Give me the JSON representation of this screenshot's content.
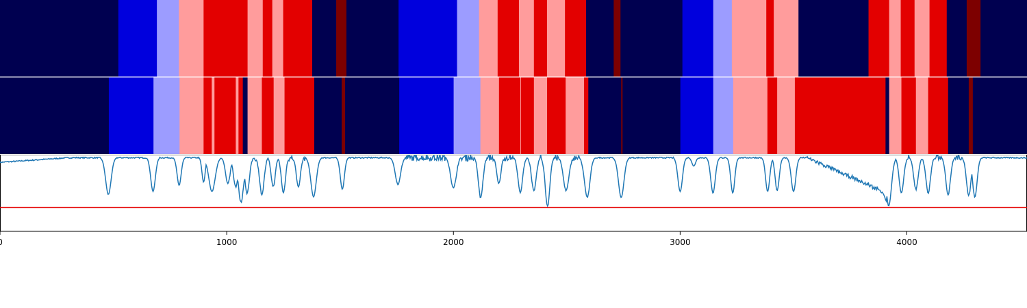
{
  "chart_data": [
    {
      "type": "heatmap",
      "panel": "segment-track-1",
      "x_range": [
        0,
        4530
      ],
      "colors": {
        "navy": "#000050",
        "blue": "#0000dd",
        "lightblue": "#9c9cff",
        "pink": "#ff9c9c",
        "red": "#e30000",
        "darkred": "#7d0000"
      },
      "segments": [
        {
          "start": 0,
          "end": 522,
          "cls": "navy"
        },
        {
          "start": 522,
          "end": 692,
          "cls": "blue"
        },
        {
          "start": 692,
          "end": 789,
          "cls": "lightblue"
        },
        {
          "start": 789,
          "end": 898,
          "cls": "pink"
        },
        {
          "start": 898,
          "end": 1092,
          "cls": "red"
        },
        {
          "start": 1092,
          "end": 1159,
          "cls": "pink"
        },
        {
          "start": 1159,
          "end": 1201,
          "cls": "red"
        },
        {
          "start": 1201,
          "end": 1249,
          "cls": "pink"
        },
        {
          "start": 1249,
          "end": 1377,
          "cls": "red"
        },
        {
          "start": 1377,
          "end": 1483,
          "cls": "navy"
        },
        {
          "start": 1483,
          "end": 1528,
          "cls": "darkred"
        },
        {
          "start": 1528,
          "end": 1758,
          "cls": "navy"
        },
        {
          "start": 1758,
          "end": 2016,
          "cls": "blue"
        },
        {
          "start": 2016,
          "end": 2113,
          "cls": "lightblue"
        },
        {
          "start": 2113,
          "end": 2195,
          "cls": "pink"
        },
        {
          "start": 2195,
          "end": 2289,
          "cls": "red"
        },
        {
          "start": 2289,
          "end": 2355,
          "cls": "pink"
        },
        {
          "start": 2355,
          "end": 2413,
          "cls": "red"
        },
        {
          "start": 2413,
          "end": 2492,
          "cls": "pink"
        },
        {
          "start": 2492,
          "end": 2585,
          "cls": "red"
        },
        {
          "start": 2585,
          "end": 2707,
          "cls": "navy"
        },
        {
          "start": 2707,
          "end": 2737,
          "cls": "darkred"
        },
        {
          "start": 2737,
          "end": 3010,
          "cls": "navy"
        },
        {
          "start": 3010,
          "end": 3146,
          "cls": "blue"
        },
        {
          "start": 3146,
          "end": 3228,
          "cls": "lightblue"
        },
        {
          "start": 3228,
          "end": 3380,
          "cls": "pink"
        },
        {
          "start": 3380,
          "end": 3413,
          "cls": "red"
        },
        {
          "start": 3413,
          "end": 3522,
          "cls": "pink"
        },
        {
          "start": 3522,
          "end": 3831,
          "cls": "navy"
        },
        {
          "start": 3831,
          "end": 3922,
          "cls": "red"
        },
        {
          "start": 3922,
          "end": 3973,
          "cls": "pink"
        },
        {
          "start": 3973,
          "end": 4034,
          "cls": "red"
        },
        {
          "start": 4034,
          "end": 4100,
          "cls": "pink"
        },
        {
          "start": 4100,
          "end": 4176,
          "cls": "red"
        },
        {
          "start": 4176,
          "end": 4264,
          "cls": "navy"
        },
        {
          "start": 4264,
          "end": 4325,
          "cls": "darkred"
        },
        {
          "start": 4325,
          "end": 4530,
          "cls": "navy"
        }
      ]
    },
    {
      "type": "heatmap",
      "panel": "segment-track-2",
      "x_range": [
        0,
        4530
      ],
      "segments": [
        {
          "start": 0,
          "end": 480,
          "cls": "navy"
        },
        {
          "start": 480,
          "end": 677,
          "cls": "blue"
        },
        {
          "start": 677,
          "end": 792,
          "cls": "lightblue"
        },
        {
          "start": 792,
          "end": 898,
          "cls": "pink"
        },
        {
          "start": 898,
          "end": 934,
          "cls": "red"
        },
        {
          "start": 934,
          "end": 946,
          "cls": "pink"
        },
        {
          "start": 946,
          "end": 1040,
          "cls": "red"
        },
        {
          "start": 1040,
          "end": 1052,
          "cls": "pink"
        },
        {
          "start": 1052,
          "end": 1071,
          "cls": "red"
        },
        {
          "start": 1071,
          "end": 1092,
          "cls": "navy"
        },
        {
          "start": 1092,
          "end": 1155,
          "cls": "pink"
        },
        {
          "start": 1155,
          "end": 1207,
          "cls": "red"
        },
        {
          "start": 1207,
          "end": 1255,
          "cls": "pink"
        },
        {
          "start": 1255,
          "end": 1386,
          "cls": "red"
        },
        {
          "start": 1386,
          "end": 1507,
          "cls": "navy"
        },
        {
          "start": 1507,
          "end": 1522,
          "cls": "darkred"
        },
        {
          "start": 1522,
          "end": 1761,
          "cls": "navy"
        },
        {
          "start": 1761,
          "end": 2001,
          "cls": "blue"
        },
        {
          "start": 2001,
          "end": 2119,
          "cls": "lightblue"
        },
        {
          "start": 2119,
          "end": 2201,
          "cls": "pink"
        },
        {
          "start": 2201,
          "end": 2295,
          "cls": "red"
        },
        {
          "start": 2295,
          "end": 2298,
          "cls": "pink"
        },
        {
          "start": 2298,
          "end": 2355,
          "cls": "red"
        },
        {
          "start": 2355,
          "end": 2413,
          "cls": "pink"
        },
        {
          "start": 2413,
          "end": 2495,
          "cls": "red"
        },
        {
          "start": 2495,
          "end": 2576,
          "cls": "pink"
        },
        {
          "start": 2576,
          "end": 2595,
          "cls": "red"
        },
        {
          "start": 2595,
          "end": 2740,
          "cls": "navy"
        },
        {
          "start": 2740,
          "end": 2746,
          "cls": "darkred"
        },
        {
          "start": 2746,
          "end": 3001,
          "cls": "navy"
        },
        {
          "start": 3001,
          "end": 3146,
          "cls": "blue"
        },
        {
          "start": 3146,
          "end": 3234,
          "cls": "lightblue"
        },
        {
          "start": 3234,
          "end": 3385,
          "cls": "pink"
        },
        {
          "start": 3385,
          "end": 3428,
          "cls": "red"
        },
        {
          "start": 3428,
          "end": 3506,
          "cls": "pink"
        },
        {
          "start": 3506,
          "end": 3906,
          "cls": "red"
        },
        {
          "start": 3906,
          "end": 3922,
          "cls": "navy"
        },
        {
          "start": 3922,
          "end": 3976,
          "cls": "pink"
        },
        {
          "start": 3976,
          "end": 4040,
          "cls": "red"
        },
        {
          "start": 4040,
          "end": 4094,
          "cls": "pink"
        },
        {
          "start": 4094,
          "end": 4182,
          "cls": "red"
        },
        {
          "start": 4182,
          "end": 4273,
          "cls": "navy"
        },
        {
          "start": 4273,
          "end": 4291,
          "cls": "darkred"
        },
        {
          "start": 4291,
          "end": 4530,
          "cls": "navy"
        }
      ]
    },
    {
      "type": "line",
      "panel": "signal-track",
      "x_range": [
        0,
        4530
      ],
      "y_range": [
        0,
        1
      ],
      "line_color": "#1f77b4",
      "threshold_color": "#e50000",
      "threshold": 0.31,
      "baseline": 0.96,
      "baseline_start": 0.9,
      "dips": [
        {
          "x": 478,
          "y": 0.48,
          "w": 12
        },
        {
          "x": 675,
          "y": 0.52,
          "w": 10
        },
        {
          "x": 790,
          "y": 0.6,
          "w": 9
        },
        {
          "x": 898,
          "y": 0.64,
          "w": 7
        },
        {
          "x": 935,
          "y": 0.52,
          "w": 14
        },
        {
          "x": 1005,
          "y": 0.62,
          "w": 10
        },
        {
          "x": 1040,
          "y": 0.58,
          "w": 10
        },
        {
          "x": 1063,
          "y": 0.38,
          "w": 12
        },
        {
          "x": 1090,
          "y": 0.5,
          "w": 10
        },
        {
          "x": 1155,
          "y": 0.48,
          "w": 10
        },
        {
          "x": 1205,
          "y": 0.58,
          "w": 9
        },
        {
          "x": 1250,
          "y": 0.5,
          "w": 9
        },
        {
          "x": 1316,
          "y": 0.58,
          "w": 9
        },
        {
          "x": 1383,
          "y": 0.45,
          "w": 12
        },
        {
          "x": 1510,
          "y": 0.55,
          "w": 9
        },
        {
          "x": 1755,
          "y": 0.62,
          "w": 12
        },
        {
          "x": 2000,
          "y": 0.56,
          "w": 12
        },
        {
          "x": 2120,
          "y": 0.44,
          "w": 10
        },
        {
          "x": 2200,
          "y": 0.62,
          "w": 9
        },
        {
          "x": 2295,
          "y": 0.5,
          "w": 10
        },
        {
          "x": 2355,
          "y": 0.52,
          "w": 10
        },
        {
          "x": 2415,
          "y": 0.33,
          "w": 10
        },
        {
          "x": 2497,
          "y": 0.53,
          "w": 12
        },
        {
          "x": 2590,
          "y": 0.44,
          "w": 12
        },
        {
          "x": 2740,
          "y": 0.44,
          "w": 12
        },
        {
          "x": 3000,
          "y": 0.52,
          "w": 10
        },
        {
          "x": 3060,
          "y": 0.85,
          "w": 8
        },
        {
          "x": 3145,
          "y": 0.5,
          "w": 10
        },
        {
          "x": 3232,
          "y": 0.5,
          "w": 9
        },
        {
          "x": 3386,
          "y": 0.52,
          "w": 9
        },
        {
          "x": 3428,
          "y": 0.53,
          "w": 9
        },
        {
          "x": 3500,
          "y": 0.52,
          "w": 10
        },
        {
          "x": 3920,
          "y": 0.33,
          "w": 12
        },
        {
          "x": 3976,
          "y": 0.5,
          "w": 10
        },
        {
          "x": 4040,
          "y": 0.55,
          "w": 10
        },
        {
          "x": 4094,
          "y": 0.5,
          "w": 10
        },
        {
          "x": 4182,
          "y": 0.48,
          "w": 10
        },
        {
          "x": 4273,
          "y": 0.47,
          "w": 10
        },
        {
          "x": 4300,
          "y": 0.45,
          "w": 10
        }
      ],
      "noisy_regions": [
        {
          "start": 1750,
          "end": 2610,
          "amp": 0.08
        },
        {
          "start": 1000,
          "end": 1350,
          "amp": 0.08
        },
        {
          "start": 3980,
          "end": 4320,
          "amp": 0.06
        }
      ],
      "slopes": [
        {
          "start": 3560,
          "end": 3910,
          "from": 0.96,
          "to": 0.5
        }
      ]
    }
  ],
  "axis": {
    "x_range": [
      0,
      4530
    ],
    "ticks": [
      0,
      1000,
      2000,
      3000,
      4000
    ],
    "tick_labels": [
      "0",
      "1000",
      "2000",
      "3000",
      "4000"
    ]
  }
}
